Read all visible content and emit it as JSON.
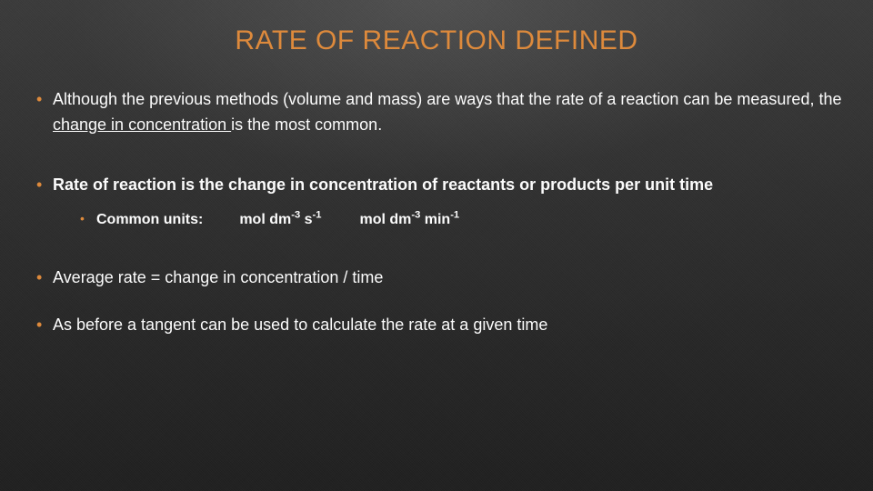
{
  "colors": {
    "title": "#e08a3a",
    "bullet": "#e08a3a",
    "text": "#ffffff"
  },
  "title": "RATE OF REACTION DEFINED",
  "bullets": {
    "b1_pre": "Although the previous methods (volume and mass) are ways that the rate of a reaction can be measured, the ",
    "b1_underlined": "change in concentration ",
    "b1_post": "is the most common.",
    "b2": "Rate of reaction is the change in concentration of reactants or products per unit time",
    "b2_sub_label": "Common units:",
    "unit1_a": "mol dm",
    "unit1_b": "-3",
    "unit1_c": " s",
    "unit1_d": "-1",
    "unit2_a": "mol dm",
    "unit2_b": "-3",
    "unit2_c": " min",
    "unit2_d": "-1",
    "b3": "Average rate = change in concentration / time",
    "b4": "As before a tangent can be used to calculate the rate at a given time"
  }
}
